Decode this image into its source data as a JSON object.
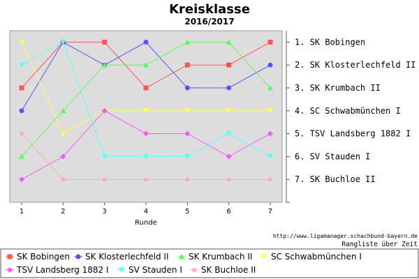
{
  "chart_data": {
    "type": "line",
    "title": "Kreisklasse",
    "subtitle": "2016/2017",
    "xlabel": "Runde",
    "x": [
      1,
      2,
      3,
      4,
      5,
      6,
      7
    ],
    "ylim": [
      0.5,
      8.0
    ],
    "y_inverted": true,
    "y_tick_labels": [
      "1. SK Bobingen",
      "2. SK Klosterlechfeld II",
      "3. SK Krumbach II",
      "4. SC Schwabmünchen I",
      "5. TSV Landsberg 1882 I",
      "6. SV Stauden I",
      "7. SK Buchloe II"
    ],
    "grid": false,
    "legend_position": "bottom",
    "plot_background": "#dddddd",
    "series": [
      {
        "name": "SK Bobingen",
        "color": "#ff5555",
        "marker": "square",
        "values": [
          3,
          1,
          1,
          3,
          2,
          2,
          1
        ]
      },
      {
        "name": "SK Klosterlechfeld II",
        "color": "#5555ff",
        "marker": "circle",
        "values": [
          4,
          1,
          2,
          1,
          3,
          3,
          2
        ]
      },
      {
        "name": "SK Krumbach II",
        "color": "#55ff55",
        "marker": "triangle-up",
        "values": [
          6,
          4,
          2,
          2,
          1,
          1,
          3
        ]
      },
      {
        "name": "SC Schwabmünchen I",
        "color": "#ffff55",
        "marker": "triangle-down",
        "values": [
          1,
          5,
          4,
          4,
          4,
          4,
          4
        ]
      },
      {
        "name": "TSV Landsberg 1882 I",
        "color": "#ff55ff",
        "marker": "diamond",
        "values": [
          7,
          6,
          4,
          5,
          5,
          6,
          5
        ]
      },
      {
        "name": "SV Stauden I",
        "color": "#55ffff",
        "marker": "triangle-down",
        "values": [
          2,
          1,
          6,
          6,
          6,
          5,
          6
        ]
      },
      {
        "name": "SK Buchloe II",
        "color": "#ffaaaa",
        "marker": "square-small",
        "values": [
          5,
          7,
          7,
          7,
          7,
          7,
          7
        ]
      }
    ]
  },
  "footer": {
    "credit_url": "http://www.ligamanager.schachbund-bayern.de",
    "caption": "Rangliste über Zeit"
  }
}
